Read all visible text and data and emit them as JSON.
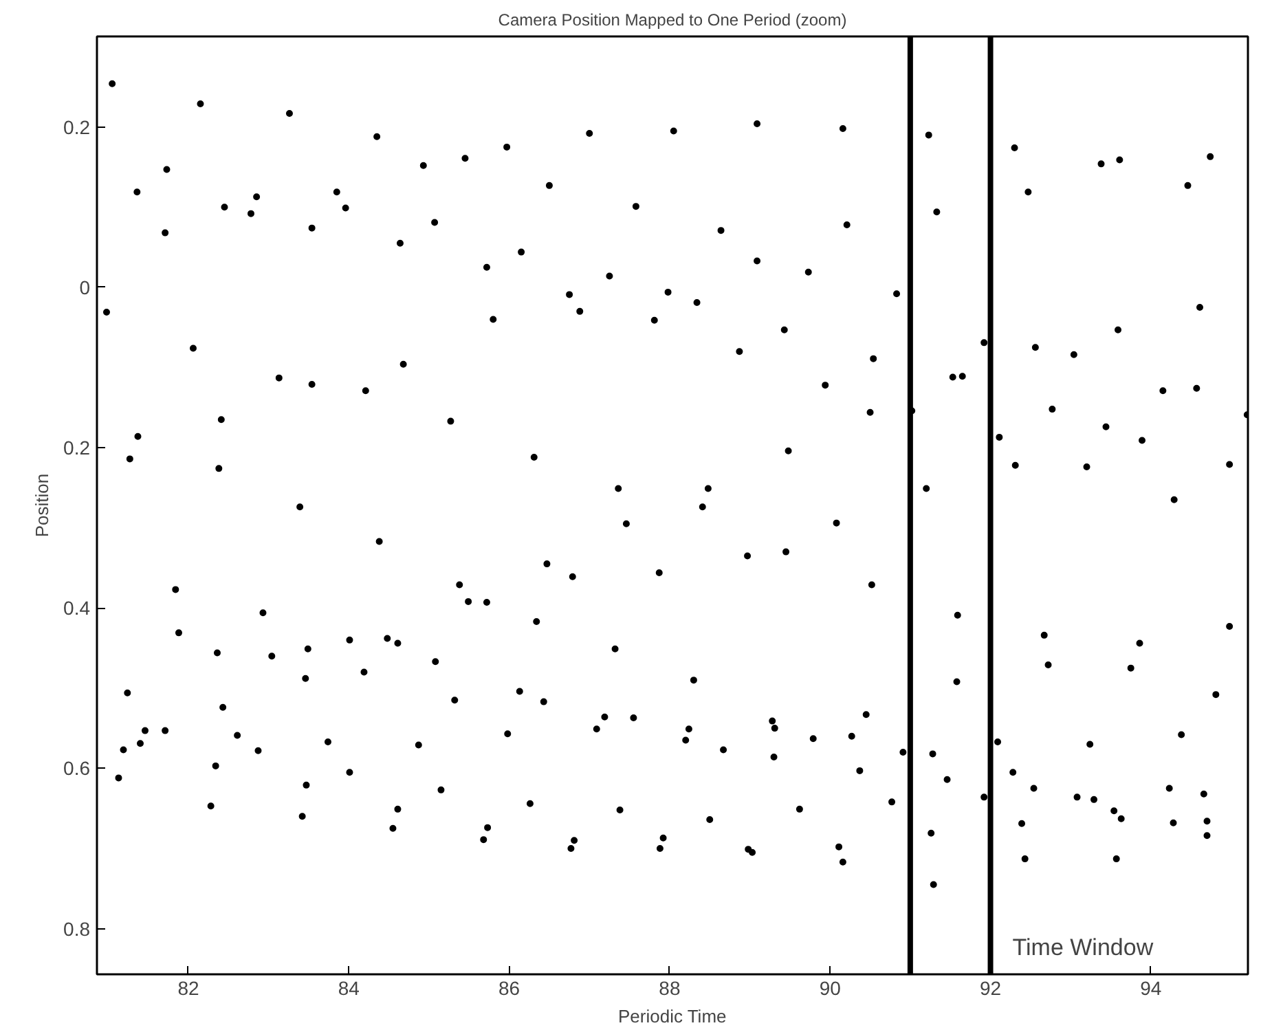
{
  "chart_data": {
    "type": "scatter",
    "title": "Camera Position Mapped to One Period (zoom)",
    "xlabel": "Periodic Time",
    "ylabel": "Position",
    "xlim": [
      80.86,
      95.21
    ],
    "ylim": [
      0.857,
      -0.313
    ],
    "xticks": [
      82,
      84,
      86,
      88,
      90,
      92,
      94
    ],
    "yticks": [
      {
        "value": -0.2,
        "label": "0.2"
      },
      0,
      0.2,
      0.4,
      0.6,
      0.8
    ],
    "grid": false,
    "marker": "circle",
    "ref_lines": [
      {
        "axis": "x",
        "value": 91,
        "color": "#000000"
      },
      {
        "axis": "x",
        "value": 92,
        "color": "#000000"
      }
    ],
    "annotations": [
      "Time Window"
    ],
    "series": [
      {
        "color": "#000000",
        "x": [
          81.05,
          82.15,
          83.26,
          84.35,
          84.93,
          81.73,
          81.36,
          83.85,
          82.85,
          82.45,
          83.96,
          82.78,
          85.07,
          83.54,
          81.71,
          84.64,
          80.98,
          82.06,
          84.68,
          83.13,
          83.54,
          84.21,
          82.41,
          81.37,
          81.27,
          82.38,
          83.39,
          85.45,
          85.97,
          87.0,
          88.05,
          89.09,
          90.16,
          86.5,
          87.58,
          88.64,
          90.21,
          85.72,
          86.15,
          87.25,
          86.75,
          86.88,
          87.81,
          87.98,
          88.34,
          89.09,
          89.73,
          89.43,
          85.8,
          88.87,
          89.94,
          85.27,
          86.31,
          89.48,
          87.36,
          88.48,
          88.41,
          90.83,
          90.54,
          90.5,
          91.23,
          91.33,
          91.92,
          91.53,
          91.65,
          91.02,
          91.2,
          92.11,
          92.3,
          92.47,
          92.56,
          92.77,
          92.31,
          93.04,
          93.38,
          93.61,
          94.46,
          94.74,
          93.59,
          94.61,
          93.44,
          93.89,
          94.15,
          94.57,
          95.2,
          93.2,
          94.98,
          94.29,
          84.38,
          81.84,
          81.88,
          82.93,
          82.36,
          83.04,
          83.49,
          83.46,
          84.01,
          84.19,
          84.48,
          84.61,
          85.08,
          81.24,
          82.43,
          81.19,
          81.4,
          81.46,
          81.71,
          82.61,
          82.87,
          83.74,
          84.87,
          81.13,
          82.34,
          84.01,
          83.47,
          85.15,
          82.28,
          83.42,
          84.61,
          84.55,
          87.46,
          90.08,
          85.38,
          85.49,
          85.72,
          86.47,
          86.79,
          87.87,
          88.97,
          89.45,
          86.34,
          87.32,
          88.3,
          85.32,
          86.13,
          86.43,
          85.98,
          87.09,
          87.19,
          87.55,
          88.2,
          88.24,
          88.67,
          89.28,
          89.31,
          89.3,
          89.79,
          90.27,
          86.26,
          87.38,
          88.5,
          89.62,
          85.73,
          85.68,
          86.81,
          86.77,
          87.92,
          87.88,
          88.98,
          89.03,
          90.11,
          90.16,
          90.52,
          90.45,
          90.37,
          90.77,
          90.91,
          91.59,
          91.58,
          91.28,
          91.46,
          91.26,
          91.29,
          91.92,
          92.09,
          92.28,
          92.54,
          92.39,
          92.43,
          92.67,
          92.72,
          93.24,
          93.08,
          93.29,
          93.54,
          93.63,
          93.57,
          93.75,
          93.86,
          94.23,
          94.28,
          94.38,
          94.66,
          94.7,
          94.7,
          94.81,
          94.98
        ],
        "values": [
          -0.254,
          -0.229,
          -0.217,
          -0.188,
          -0.152,
          -0.147,
          -0.119,
          -0.119,
          -0.113,
          -0.1,
          -0.099,
          -0.092,
          -0.081,
          -0.074,
          -0.068,
          -0.055,
          0.031,
          0.076,
          0.096,
          0.113,
          0.121,
          0.129,
          0.165,
          0.186,
          0.214,
          0.226,
          0.274,
          -0.161,
          -0.175,
          -0.192,
          -0.195,
          -0.204,
          -0.198,
          -0.127,
          -0.101,
          -0.071,
          -0.078,
          -0.025,
          -0.044,
          -0.014,
          0.009,
          0.03,
          0.041,
          0.006,
          0.019,
          -0.033,
          -0.019,
          0.053,
          0.04,
          0.08,
          0.122,
          0.167,
          0.212,
          0.204,
          0.251,
          0.251,
          0.274,
          0.008,
          0.089,
          0.156,
          -0.19,
          -0.094,
          0.069,
          0.112,
          0.111,
          0.154,
          0.251,
          0.187,
          -0.174,
          -0.119,
          0.075,
          0.152,
          0.222,
          0.084,
          -0.154,
          -0.159,
          -0.127,
          -0.163,
          0.053,
          0.025,
          0.174,
          0.191,
          0.129,
          0.126,
          0.159,
          0.224,
          0.221,
          0.265,
          0.317,
          0.377,
          0.431,
          0.406,
          0.456,
          0.46,
          0.451,
          0.488,
          0.44,
          0.48,
          0.438,
          0.444,
          0.467,
          0.506,
          0.524,
          0.577,
          0.569,
          0.553,
          0.553,
          0.559,
          0.578,
          0.567,
          0.571,
          0.612,
          0.597,
          0.605,
          0.621,
          0.627,
          0.647,
          0.66,
          0.651,
          0.675,
          0.295,
          0.294,
          0.371,
          0.392,
          0.393,
          0.345,
          0.361,
          0.356,
          0.335,
          0.33,
          0.417,
          0.451,
          0.49,
          0.515,
          0.504,
          0.517,
          0.557,
          0.551,
          0.536,
          0.537,
          0.565,
          0.551,
          0.577,
          0.541,
          0.55,
          0.586,
          0.563,
          0.56,
          0.644,
          0.652,
          0.664,
          0.651,
          0.674,
          0.689,
          0.69,
          0.7,
          0.687,
          0.7,
          0.701,
          0.705,
          0.698,
          0.717,
          0.371,
          0.533,
          0.603,
          0.642,
          0.58,
          0.409,
          0.492,
          0.582,
          0.614,
          0.681,
          0.745,
          0.636,
          0.567,
          0.605,
          0.625,
          0.669,
          0.713,
          0.434,
          0.471,
          0.57,
          0.636,
          0.639,
          0.653,
          0.663,
          0.713,
          0.475,
          0.444,
          0.625,
          0.668,
          0.558,
          0.632,
          0.666,
          0.684,
          0.508,
          0.423
        ]
      }
    ]
  }
}
